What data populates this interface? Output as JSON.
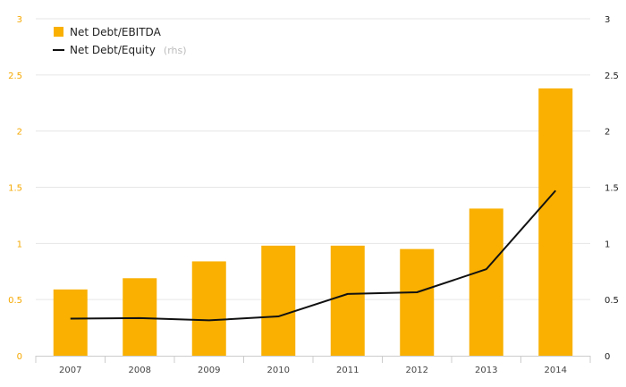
{
  "chart_data": {
    "type": "bar",
    "categories": [
      "2007",
      "2008",
      "2009",
      "2010",
      "2011",
      "2012",
      "2013",
      "2014"
    ],
    "series": [
      {
        "name": "Net Debt/EBITDA",
        "type": "bar",
        "axis": "left",
        "color": "#f9b000",
        "values": [
          0.59,
          0.69,
          0.84,
          0.98,
          0.98,
          0.95,
          1.31,
          2.38
        ]
      },
      {
        "name": "Net Debt/Equity",
        "type": "line",
        "axis": "right",
        "color": "#111111",
        "values": [
          0.33,
          0.335,
          0.315,
          0.35,
          0.55,
          0.565,
          0.77,
          1.47
        ]
      }
    ],
    "y_left": {
      "min": 0,
      "max": 3,
      "ticks": [
        "0",
        "0.5",
        "1",
        "1.5",
        "2",
        "2.5",
        "3"
      ]
    },
    "y_right": {
      "min": 0,
      "max": 3,
      "ticks": [
        "0",
        "0.5",
        "1",
        "1.5",
        "2",
        "2.5",
        "3"
      ]
    },
    "grid": true,
    "legend": {
      "position": "top-left",
      "items": [
        {
          "label": "Net Debt/EBITDA",
          "note": ""
        },
        {
          "label": "Net Debt/Equity",
          "note": "(rhs)"
        }
      ]
    }
  }
}
